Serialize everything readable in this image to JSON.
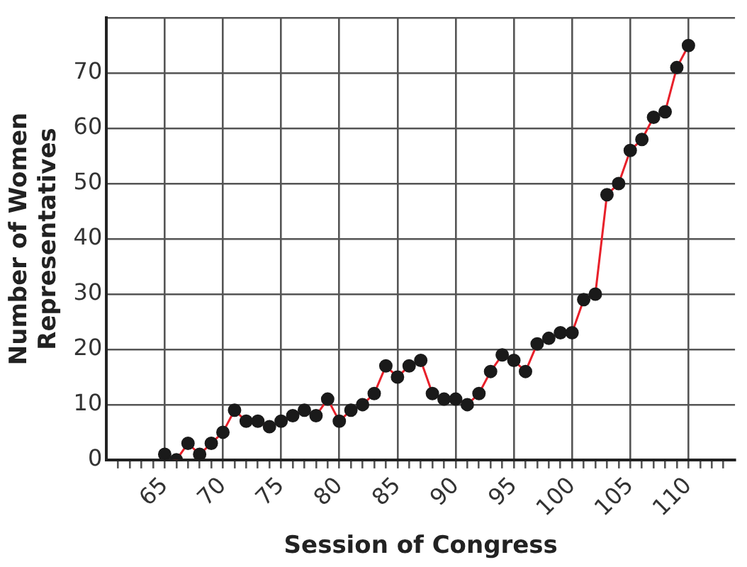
{
  "chart_data": {
    "type": "line",
    "xlabel": "Session of Congress",
    "ylabel": "Number of Women Representatives",
    "x": [
      65,
      66,
      67,
      68,
      69,
      70,
      71,
      72,
      73,
      74,
      75,
      76,
      77,
      78,
      79,
      80,
      81,
      82,
      83,
      84,
      85,
      86,
      87,
      88,
      89,
      90,
      91,
      92,
      93,
      94,
      95,
      96,
      97,
      98,
      99,
      100,
      101,
      102,
      103,
      104,
      105,
      106,
      107,
      108,
      109,
      110
    ],
    "series": [
      {
        "color": "#e8202a",
        "values": [
          1,
          0,
          3,
          1,
          3,
          5,
          9,
          7,
          7,
          6,
          7,
          8,
          9,
          8,
          11,
          7,
          9,
          10,
          12,
          17,
          15,
          17,
          18,
          12,
          11,
          11,
          10,
          12,
          16,
          19,
          18,
          16,
          21,
          22,
          23,
          23,
          29,
          30,
          48,
          50,
          56,
          58,
          62,
          63,
          71,
          75
        ]
      }
    ],
    "xlim": [
      60,
      114
    ],
    "xticks": [
      {
        "value": 61,
        "label": null
      },
      {
        "value": 62,
        "label": null
      },
      {
        "value": 63,
        "label": null
      },
      {
        "value": 64,
        "label": null
      },
      65,
      {
        "value": 66,
        "label": null
      },
      {
        "value": 67,
        "label": null
      },
      {
        "value": 68,
        "label": null
      },
      {
        "value": 69,
        "label": null
      },
      70,
      {
        "value": 71,
        "label": null
      },
      {
        "value": 72,
        "label": null
      },
      {
        "value": 73,
        "label": null
      },
      {
        "value": 74,
        "label": null
      },
      75,
      {
        "value": 76,
        "label": null
      },
      {
        "value": 77,
        "label": null
      },
      {
        "value": 78,
        "label": null
      },
      {
        "value": 79,
        "label": null
      },
      80,
      {
        "value": 81,
        "label": null
      },
      {
        "value": 82,
        "label": null
      },
      {
        "value": 83,
        "label": null
      },
      {
        "value": 84,
        "label": null
      },
      85,
      {
        "value": 86,
        "label": null
      },
      {
        "value": 87,
        "label": null
      },
      {
        "value": 88,
        "label": null
      },
      {
        "value": 89,
        "label": null
      },
      90,
      {
        "value": 91,
        "label": null
      },
      {
        "value": 92,
        "label": null
      },
      {
        "value": 93,
        "label": null
      },
      {
        "value": 94,
        "label": null
      },
      95,
      {
        "value": 96,
        "label": null
      },
      {
        "value": 97,
        "label": null
      },
      {
        "value": 98,
        "label": null
      },
      {
        "value": 99,
        "label": null
      },
      100,
      {
        "value": 101,
        "label": null
      },
      {
        "value": 102,
        "label": null
      },
      {
        "value": 103,
        "label": null
      },
      {
        "value": 104,
        "label": null
      },
      105,
      {
        "value": 106,
        "label": null
      },
      {
        "value": 107,
        "label": null
      },
      {
        "value": 108,
        "label": null
      },
      {
        "value": 109,
        "label": null
      },
      110,
      {
        "value": 111,
        "label": null
      },
      {
        "value": 112,
        "label": null
      },
      {
        "value": 113,
        "label": null
      }
    ],
    "ylim": [
      0,
      80
    ],
    "yticks": [
      0,
      10,
      20,
      30,
      40,
      50,
      60,
      70,
      {
        "value": 80,
        "label": null
      }
    ],
    "grid": true,
    "marker": "circle",
    "line_style": "solid",
    "legend": false
  }
}
